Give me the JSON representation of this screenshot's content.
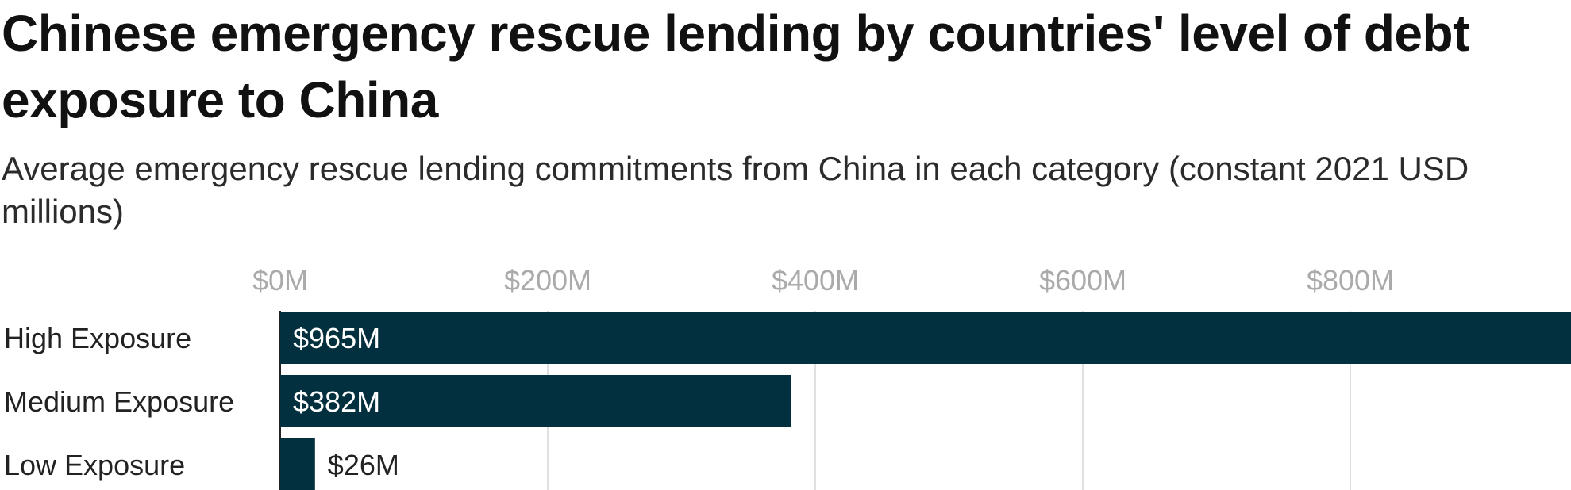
{
  "title": "Chinese emergency rescue lending by countries' level of debt exposure to China",
  "subtitle": "Average emergency rescue lending commitments from China in each category (constant 2021 USD millions)",
  "colors": {
    "bar": "#03303e",
    "grid": "#e0e0e0",
    "tick_text": "#aaaaaa",
    "label_inside": "#ffffff",
    "label_outside": "#222222"
  },
  "chart_data": {
    "type": "bar",
    "orientation": "horizontal",
    "title": "Chinese emergency rescue lending by countries' level of debt exposure to China",
    "subtitle": "Average emergency rescue lending commitments from China in each category (constant 2021 USD millions)",
    "categories": [
      "High Exposure",
      "Medium Exposure",
      "Low Exposure"
    ],
    "values": [
      965,
      382,
      26
    ],
    "value_labels": [
      "$965M",
      "$382M",
      "$26M"
    ],
    "xlim": [
      0,
      965
    ],
    "x_ticks": [
      0,
      200,
      400,
      600,
      800
    ],
    "x_tick_labels": [
      "$0M",
      "$200M",
      "$400M",
      "$600M",
      "$800M"
    ],
    "axis_position": "top",
    "grid": true,
    "legend": false
  }
}
